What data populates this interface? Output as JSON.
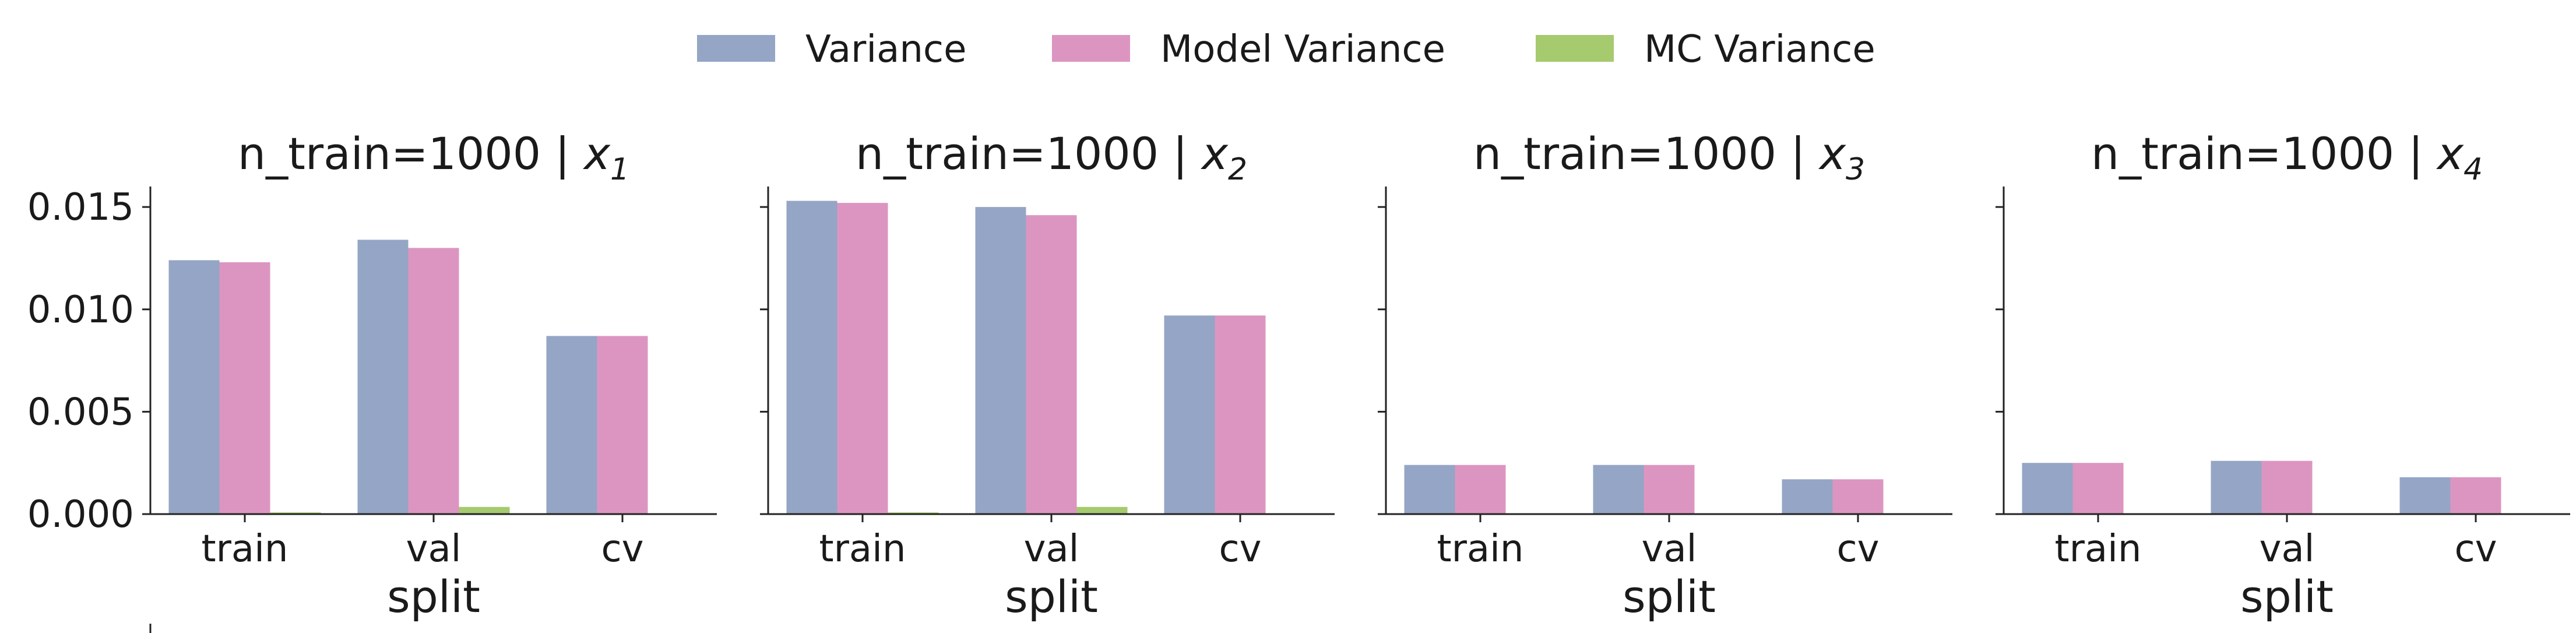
{
  "chart_data": {
    "type": "bar",
    "legend": {
      "placement": "top-center",
      "entries": [
        {
          "label": "Variance",
          "color": "#95a5c5"
        },
        {
          "label": "Model Variance",
          "color": "#dc95c1"
        },
        {
          "label": "MC Variance",
          "color": "#a6ca6e"
        }
      ]
    },
    "ylim": [
      0,
      0.016
    ],
    "yticks": [
      "0.000",
      "0.005",
      "0.010",
      "0.015"
    ],
    "ytick_values": [
      0,
      0.005,
      0.01,
      0.015
    ],
    "categories": [
      "train",
      "val",
      "cv"
    ],
    "panels": [
      {
        "title_prefix": "n_train=1000 | ",
        "title_var": "x",
        "title_sub": "1",
        "xlabel": "split",
        "series": [
          {
            "name": "Variance",
            "values": [
              0.0124,
              0.0134,
              0.0087
            ]
          },
          {
            "name": "Model Variance",
            "values": [
              0.0123,
              0.013,
              0.0087
            ]
          },
          {
            "name": "MC Variance",
            "values": [
              8e-05,
              0.00035,
              0
            ]
          }
        ]
      },
      {
        "title_prefix": "n_train=1000 | ",
        "title_var": "x",
        "title_sub": "2",
        "xlabel": "split",
        "series": [
          {
            "name": "Variance",
            "values": [
              0.0153,
              0.015,
              0.0097
            ]
          },
          {
            "name": "Model Variance",
            "values": [
              0.0152,
              0.0146,
              0.0097
            ]
          },
          {
            "name": "MC Variance",
            "values": [
              8e-05,
              0.00035,
              0
            ]
          }
        ]
      },
      {
        "title_prefix": "n_train=1000 | ",
        "title_var": "x",
        "title_sub": "3",
        "xlabel": "split",
        "series": [
          {
            "name": "Variance",
            "values": [
              0.0024,
              0.0024,
              0.0017
            ]
          },
          {
            "name": "Model Variance",
            "values": [
              0.0024,
              0.0024,
              0.0017
            ]
          },
          {
            "name": "MC Variance",
            "values": [
              0,
              0,
              0
            ]
          }
        ]
      },
      {
        "title_prefix": "n_train=1000 | ",
        "title_var": "x",
        "title_sub": "4",
        "xlabel": "split",
        "series": [
          {
            "name": "Variance",
            "values": [
              0.0025,
              0.0026,
              0.0018
            ]
          },
          {
            "name": "Model Variance",
            "values": [
              0.0025,
              0.0026,
              0.0018
            ]
          },
          {
            "name": "MC Variance",
            "values": [
              0,
              0,
              0
            ]
          }
        ]
      }
    ]
  }
}
